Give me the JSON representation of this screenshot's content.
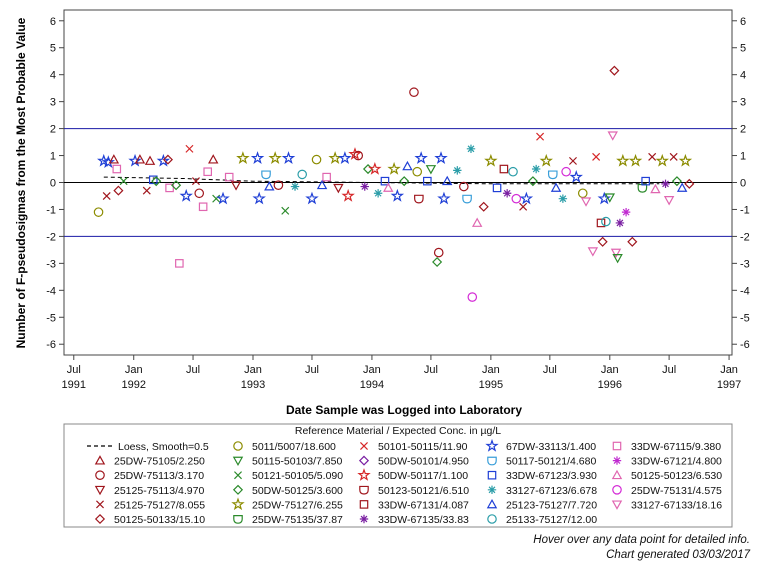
{
  "chart_data": {
    "type": "scatter",
    "xlabel": "Date Sample was Logged into Laboratory",
    "ylabel": "Number of F-pseudosigmas from the Most Probable Value",
    "ylim": [
      -6.4,
      6.4
    ],
    "yticks": [
      6,
      5,
      4,
      3,
      2,
      1,
      0,
      -1,
      -2,
      -3,
      -4,
      -5,
      -6
    ],
    "xlim": [
      "1991-06-01",
      "1997-01-10"
    ],
    "xticks": [
      {
        "date": "1991-07-01",
        "label": "Jul",
        "year": "1991"
      },
      {
        "date": "1992-01-01",
        "label": "Jan",
        "year": "1992"
      },
      {
        "date": "1992-07-01",
        "label": "Jul",
        "year": ""
      },
      {
        "date": "1993-01-01",
        "label": "Jan",
        "year": "1993"
      },
      {
        "date": "1993-07-01",
        "label": "Jul",
        "year": ""
      },
      {
        "date": "1994-01-01",
        "label": "Jan",
        "year": "1994"
      },
      {
        "date": "1994-07-01",
        "label": "Jul",
        "year": ""
      },
      {
        "date": "1995-01-01",
        "label": "Jan",
        "year": "1995"
      },
      {
        "date": "1995-07-01",
        "label": "Jul",
        "year": ""
      },
      {
        "date": "1996-01-01",
        "label": "Jan",
        "year": "1996"
      },
      {
        "date": "1996-07-01",
        "label": "Jul",
        "year": ""
      },
      {
        "date": "1997-01-01",
        "label": "Jan",
        "year": "1997"
      }
    ],
    "reference_lines": [
      {
        "y": 2,
        "color": "#1a1aa6"
      },
      {
        "y": 0,
        "color": "#000000"
      },
      {
        "y": -2,
        "color": "#1a1aa6"
      }
    ],
    "loess": {
      "x": [
        "1991-10-01",
        "1992-06-01",
        "1993-01-01",
        "1994-01-01",
        "1995-01-01",
        "1996-01-01",
        "1996-06-01"
      ],
      "y": [
        0.2,
        0.15,
        0.05,
        0.0,
        -0.05,
        -0.05,
        -0.05
      ]
    },
    "legend": {
      "title": "Reference Material / Expected Conc. in µg/L",
      "placement": "bottom",
      "entries": [
        {
          "label": "Loess, Smooth=0.5",
          "symbol": "dash",
          "color": "#000000"
        },
        {
          "label": "25DW-75105/2.250",
          "symbol": "triangle",
          "color": "#a0161d"
        },
        {
          "label": "25DW-75113/3.170",
          "symbol": "circle",
          "color": "#a0161d"
        },
        {
          "label": "25125-75113/4.970",
          "symbol": "tri-down",
          "color": "#a0161d"
        },
        {
          "label": "25125-75127/8.055",
          "symbol": "x",
          "color": "#a0161d"
        },
        {
          "label": "50125-50133/15.10",
          "symbol": "diamond",
          "color": "#a0161d"
        },
        {
          "label": "5011/5007/18.600",
          "symbol": "circle",
          "color": "#8c8c00"
        },
        {
          "label": "50115-50103/7.850",
          "symbol": "tri-down",
          "color": "#2b8a2b"
        },
        {
          "label": "50121-50105/5.090",
          "symbol": "x",
          "color": "#2b8a2b"
        },
        {
          "label": "50DW-50125/3.600",
          "symbol": "diamond",
          "color": "#2b8a2b"
        },
        {
          "label": "25DW-75127/6.255",
          "symbol": "star",
          "color": "#8c8c00"
        },
        {
          "label": "25DW-75135/37.87",
          "symbol": "shield",
          "color": "#2b8a2b"
        },
        {
          "label": "50101-50115/11.90",
          "symbol": "x",
          "color": "#d62728"
        },
        {
          "label": "50DW-50101/4.950",
          "symbol": "diamond",
          "color": "#7a1fa2"
        },
        {
          "label": "50DW-50117/1.100",
          "symbol": "star",
          "color": "#d62728"
        },
        {
          "label": "50123-50121/6.510",
          "symbol": "shield",
          "color": "#a0161d"
        },
        {
          "label": "33DW-67131/4.087",
          "symbol": "square",
          "color": "#a0161d"
        },
        {
          "label": "33DW-67135/33.83",
          "symbol": "asterisk",
          "color": "#7a1fa2"
        },
        {
          "label": "67DW-33113/1.400",
          "symbol": "star",
          "color": "#1f3fd6"
        },
        {
          "label": "50117-50121/4.680",
          "symbol": "shield",
          "color": "#3a9fd9"
        },
        {
          "label": "33DW-67123/3.930",
          "symbol": "square",
          "color": "#1f3fd6"
        },
        {
          "label": "33127-67123/6.678",
          "symbol": "asterisk",
          "color": "#2a9da8"
        },
        {
          "label": "25123-75127/7.720",
          "symbol": "triangle",
          "color": "#1f3fd6"
        },
        {
          "label": "25133-75127/12.00",
          "symbol": "circle",
          "color": "#2a9da8"
        },
        {
          "label": "33DW-67115/9.380",
          "symbol": "square",
          "color": "#e066b0"
        },
        {
          "label": "33DW-67121/4.800",
          "symbol": "asterisk",
          "color": "#c02ad0"
        },
        {
          "label": "50125-50123/6.530",
          "symbol": "triangle",
          "color": "#e066b0"
        },
        {
          "label": "25DW-75131/4.575",
          "symbol": "circle",
          "color": "#d42ad6"
        },
        {
          "label": "33127-67133/18.16",
          "symbol": "tri-down",
          "color": "#e066b0"
        }
      ]
    },
    "points": [
      {
        "x": "1991-09-15",
        "y": -1.1,
        "m": 6
      },
      {
        "x": "1991-10-01",
        "y": 0.8,
        "m": 18
      },
      {
        "x": "1991-10-15",
        "y": 0.75,
        "m": 18
      },
      {
        "x": "1991-10-10",
        "y": -0.5,
        "m": 4
      },
      {
        "x": "1991-11-01",
        "y": 0.85,
        "m": 1
      },
      {
        "x": "1991-11-10",
        "y": 0.5,
        "m": 24
      },
      {
        "x": "1991-11-15",
        "y": -0.3,
        "m": 5
      },
      {
        "x": "1991-12-01",
        "y": 0.05,
        "m": 8
      },
      {
        "x": "1992-01-05",
        "y": 0.8,
        "m": 18
      },
      {
        "x": "1992-01-20",
        "y": 0.85,
        "m": 1
      },
      {
        "x": "1992-02-10",
        "y": -0.3,
        "m": 4
      },
      {
        "x": "1992-02-20",
        "y": 0.8,
        "m": 1
      },
      {
        "x": "1992-03-01",
        "y": 0.1,
        "m": 20
      },
      {
        "x": "1992-03-10",
        "y": 0.05,
        "m": 9
      },
      {
        "x": "1992-04-01",
        "y": 0.8,
        "m": 18
      },
      {
        "x": "1992-04-15",
        "y": 0.85,
        "m": 5
      },
      {
        "x": "1992-04-20",
        "y": -0.2,
        "m": 24
      },
      {
        "x": "1992-05-10",
        "y": -0.1,
        "m": 9
      },
      {
        "x": "1992-05-20",
        "y": -3.0,
        "m": 24
      },
      {
        "x": "1992-06-10",
        "y": -0.5,
        "m": 18
      },
      {
        "x": "1992-06-20",
        "y": 1.25,
        "m": 12
      },
      {
        "x": "1992-07-10",
        "y": 0.05,
        "m": 4
      },
      {
        "x": "1992-07-20",
        "y": -0.4,
        "m": 2
      },
      {
        "x": "1992-08-01",
        "y": -0.9,
        "m": 24
      },
      {
        "x": "1992-08-15",
        "y": 0.4,
        "m": 24
      },
      {
        "x": "1992-09-01",
        "y": 0.85,
        "m": 1
      },
      {
        "x": "1992-09-10",
        "y": -0.6,
        "m": 8
      },
      {
        "x": "1992-10-01",
        "y": -0.6,
        "m": 18
      },
      {
        "x": "1992-10-20",
        "y": 0.2,
        "m": 24
      },
      {
        "x": "1992-11-10",
        "y": -0.1,
        "m": 3
      },
      {
        "x": "1992-12-01",
        "y": 0.9,
        "m": 10
      },
      {
        "x": "1993-01-15",
        "y": 0.9,
        "m": 18
      },
      {
        "x": "1993-01-20",
        "y": -0.6,
        "m": 18
      },
      {
        "x": "1993-02-10",
        "y": 0.3,
        "m": 19
      },
      {
        "x": "1993-02-20",
        "y": -0.15,
        "m": 22
      },
      {
        "x": "1993-03-10",
        "y": 0.9,
        "m": 10
      },
      {
        "x": "1993-03-20",
        "y": -0.1,
        "m": 2
      },
      {
        "x": "1993-04-10",
        "y": -1.05,
        "m": 8
      },
      {
        "x": "1993-04-20",
        "y": 0.9,
        "m": 18
      },
      {
        "x": "1993-05-10",
        "y": -0.15,
        "m": 21
      },
      {
        "x": "1993-06-01",
        "y": 0.3,
        "m": 23
      },
      {
        "x": "1993-07-01",
        "y": -0.6,
        "m": 18
      },
      {
        "x": "1993-07-15",
        "y": 0.85,
        "m": 6
      },
      {
        "x": "1993-08-01",
        "y": -0.1,
        "m": 22
      },
      {
        "x": "1993-08-15",
        "y": 0.2,
        "m": 24
      },
      {
        "x": "1993-09-10",
        "y": 0.9,
        "m": 10
      },
      {
        "x": "1993-09-20",
        "y": -0.2,
        "m": 3
      },
      {
        "x": "1993-10-10",
        "y": 0.9,
        "m": 18
      },
      {
        "x": "1993-10-20",
        "y": -0.5,
        "m": 14
      },
      {
        "x": "1993-11-10",
        "y": 1.05,
        "m": 14
      },
      {
        "x": "1993-11-20",
        "y": 1.0,
        "m": 2
      },
      {
        "x": "1993-12-10",
        "y": -0.15,
        "m": 17
      },
      {
        "x": "1993-12-20",
        "y": 0.5,
        "m": 9
      },
      {
        "x": "1994-01-10",
        "y": 0.5,
        "m": 14
      },
      {
        "x": "1994-01-20",
        "y": -0.4,
        "m": 21
      },
      {
        "x": "1994-02-10",
        "y": 0.05,
        "m": 20
      },
      {
        "x": "1994-02-20",
        "y": -0.2,
        "m": 26
      },
      {
        "x": "1994-03-10",
        "y": 0.5,
        "m": 10
      },
      {
        "x": "1994-03-20",
        "y": -0.5,
        "m": 18
      },
      {
        "x": "1994-04-10",
        "y": 0.05,
        "m": 9
      },
      {
        "x": "1994-04-20",
        "y": 0.6,
        "m": 22
      },
      {
        "x": "1994-05-10",
        "y": 3.35,
        "m": 2
      },
      {
        "x": "1994-05-20",
        "y": 0.4,
        "m": 6
      },
      {
        "x": "1994-05-25",
        "y": -0.6,
        "m": 15
      },
      {
        "x": "1994-06-01",
        "y": 0.9,
        "m": 18
      },
      {
        "x": "1994-06-20",
        "y": 0.05,
        "m": 20
      },
      {
        "x": "1994-07-01",
        "y": 0.5,
        "m": 7
      },
      {
        "x": "1994-07-20",
        "y": -2.95,
        "m": 9
      },
      {
        "x": "1994-07-25",
        "y": -2.6,
        "m": 2
      },
      {
        "x": "1994-08-01",
        "y": 0.9,
        "m": 18
      },
      {
        "x": "1994-08-10",
        "y": -0.6,
        "m": 18
      },
      {
        "x": "1994-08-20",
        "y": 0.05,
        "m": 22
      },
      {
        "x": "1994-09-20",
        "y": 0.45,
        "m": 21
      },
      {
        "x": "1994-10-10",
        "y": -0.15,
        "m": 2
      },
      {
        "x": "1994-10-20",
        "y": -0.6,
        "m": 19
      },
      {
        "x": "1994-11-01",
        "y": 1.25,
        "m": 21
      },
      {
        "x": "1994-11-05",
        "y": -4.25,
        "m": 27
      },
      {
        "x": "1994-11-20",
        "y": -1.5,
        "m": 26
      },
      {
        "x": "1994-12-10",
        "y": -0.9,
        "m": 5
      },
      {
        "x": "1995-01-01",
        "y": 0.8,
        "m": 10
      },
      {
        "x": "1995-01-20",
        "y": -0.2,
        "m": 20
      },
      {
        "x": "1995-02-10",
        "y": 0.5,
        "m": 16
      },
      {
        "x": "1995-02-20",
        "y": -0.4,
        "m": 17
      },
      {
        "x": "1995-03-10",
        "y": 0.4,
        "m": 23
      },
      {
        "x": "1995-03-20",
        "y": -0.6,
        "m": 27
      },
      {
        "x": "1995-04-10",
        "y": -0.9,
        "m": 4
      },
      {
        "x": "1995-04-20",
        "y": -0.6,
        "m": 18
      },
      {
        "x": "1995-05-10",
        "y": 0.05,
        "m": 9
      },
      {
        "x": "1995-05-20",
        "y": 0.5,
        "m": 21
      },
      {
        "x": "1995-06-01",
        "y": 1.7,
        "m": 12
      },
      {
        "x": "1995-06-20",
        "y": 0.8,
        "m": 10
      },
      {
        "x": "1995-07-10",
        "y": 0.3,
        "m": 19
      },
      {
        "x": "1995-07-20",
        "y": -0.2,
        "m": 22
      },
      {
        "x": "1995-08-10",
        "y": -0.6,
        "m": 21
      },
      {
        "x": "1995-08-20",
        "y": 0.4,
        "m": 27
      },
      {
        "x": "1995-09-10",
        "y": 0.8,
        "m": 4
      },
      {
        "x": "1995-09-20",
        "y": 0.2,
        "m": 18
      },
      {
        "x": "1995-10-10",
        "y": -0.4,
        "m": 6
      },
      {
        "x": "1995-10-20",
        "y": -0.7,
        "m": 28
      },
      {
        "x": "1995-11-10",
        "y": -2.55,
        "m": 28
      },
      {
        "x": "1995-11-20",
        "y": 0.95,
        "m": 12
      },
      {
        "x": "1995-12-05",
        "y": -1.5,
        "m": 16
      },
      {
        "x": "1995-12-10",
        "y": -2.2,
        "m": 5
      },
      {
        "x": "1995-12-15",
        "y": -0.6,
        "m": 18
      },
      {
        "x": "1995-12-20",
        "y": -1.45,
        "m": 23
      },
      {
        "x": "1996-01-01",
        "y": -0.55,
        "m": 7
      },
      {
        "x": "1996-01-10",
        "y": 1.75,
        "m": 28
      },
      {
        "x": "1996-01-15",
        "y": 4.15,
        "m": 5
      },
      {
        "x": "1996-01-20",
        "y": -2.6,
        "m": 28
      },
      {
        "x": "1996-01-25",
        "y": -2.8,
        "m": 7
      },
      {
        "x": "1996-02-01",
        "y": -1.5,
        "m": 17
      },
      {
        "x": "1996-02-10",
        "y": 0.8,
        "m": 10
      },
      {
        "x": "1996-02-20",
        "y": -1.1,
        "m": 25
      },
      {
        "x": "1996-03-10",
        "y": -2.2,
        "m": 5
      },
      {
        "x": "1996-03-20",
        "y": 0.8,
        "m": 10
      },
      {
        "x": "1996-04-10",
        "y": -0.2,
        "m": 11
      },
      {
        "x": "1996-04-20",
        "y": 0.05,
        "m": 20
      },
      {
        "x": "1996-05-10",
        "y": 0.95,
        "m": 4
      },
      {
        "x": "1996-05-20",
        "y": -0.25,
        "m": 26
      },
      {
        "x": "1996-06-10",
        "y": 0.8,
        "m": 10
      },
      {
        "x": "1996-06-20",
        "y": -0.05,
        "m": 17
      },
      {
        "x": "1996-07-01",
        "y": -0.65,
        "m": 28
      },
      {
        "x": "1996-07-15",
        "y": 0.95,
        "m": 4
      },
      {
        "x": "1996-07-25",
        "y": 0.05,
        "m": 9
      },
      {
        "x": "1996-08-10",
        "y": -0.2,
        "m": 22
      },
      {
        "x": "1996-08-20",
        "y": 0.8,
        "m": 10
      },
      {
        "x": "1996-09-01",
        "y": -0.05,
        "m": 5
      }
    ]
  },
  "notes": {
    "hover": "Hover over any data point for detailed info.",
    "generated": "Chart generated 03/03/2017"
  }
}
